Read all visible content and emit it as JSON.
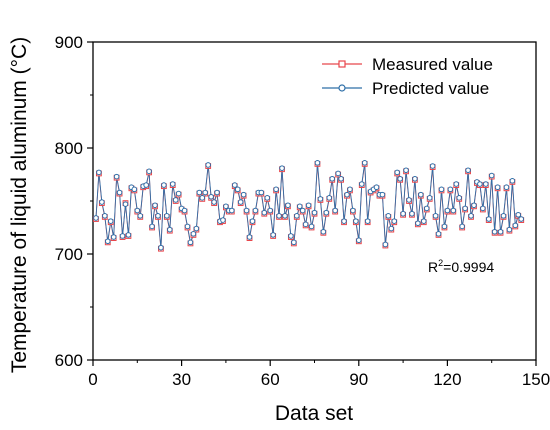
{
  "chart_data": {
    "type": "line",
    "title": "",
    "xlabel": "Data set",
    "ylabel": "Temperature of liquid aluminum (°C)",
    "xlim": [
      0,
      150
    ],
    "ylim": [
      600,
      900
    ],
    "xticks": [
      "0",
      "30",
      "60",
      "90",
      "120",
      "150"
    ],
    "yticks": [
      "600",
      "700",
      "800",
      "900"
    ],
    "grid": false,
    "legend_position": "top-right",
    "annotation": {
      "prefix": "R",
      "superscript": "2",
      "value": "=0.9994"
    },
    "x": [
      1,
      2,
      3,
      4,
      5,
      6,
      7,
      8,
      9,
      10,
      11,
      12,
      13,
      14,
      15,
      16,
      17,
      18,
      19,
      20,
      21,
      22,
      23,
      24,
      25,
      26,
      27,
      28,
      29,
      30,
      31,
      32,
      33,
      34,
      35,
      36,
      37,
      38,
      39,
      40,
      41,
      42,
      43,
      44,
      45,
      46,
      47,
      48,
      49,
      50,
      51,
      52,
      53,
      54,
      55,
      56,
      57,
      58,
      59,
      60,
      61,
      62,
      63,
      64,
      65,
      66,
      67,
      68,
      69,
      70,
      71,
      72,
      73,
      74,
      75,
      76,
      77,
      78,
      79,
      80,
      81,
      82,
      83,
      84,
      85,
      86,
      87,
      88,
      89,
      90,
      91,
      92,
      93,
      94,
      95,
      96,
      97,
      98,
      99,
      100,
      101,
      102,
      103,
      104,
      105,
      106,
      107,
      108,
      109,
      110,
      111,
      112,
      113,
      114,
      115,
      116,
      117,
      118,
      119,
      120,
      121,
      122,
      123,
      124,
      125,
      126,
      127,
      128,
      129,
      130,
      131,
      132,
      133,
      134,
      135,
      136,
      137,
      138,
      139,
      140,
      141,
      142,
      143,
      144,
      145
    ],
    "series": [
      {
        "name": "Measured value",
        "color": "#e8474c",
        "marker": "square",
        "values": [
          733,
          776,
          748,
          735,
          711,
          730,
          715,
          772,
          757,
          716,
          748,
          717,
          762,
          760,
          740,
          735,
          763,
          764,
          777,
          725,
          745,
          735,
          705,
          764,
          735,
          722,
          765,
          750,
          756,
          742,
          740,
          725,
          710,
          718,
          723,
          757,
          752,
          757,
          783,
          753,
          748,
          757,
          730,
          731,
          744,
          740,
          740,
          764,
          760,
          748,
          755,
          740,
          715,
          730,
          740,
          757,
          757,
          738,
          752,
          740,
          717,
          760,
          735,
          780,
          735,
          745,
          716,
          710,
          735,
          744,
          740,
          727,
          745,
          725,
          738,
          785,
          751,
          720,
          738,
          752,
          770,
          740,
          775,
          770,
          730,
          755,
          760,
          740,
          730,
          712,
          765,
          785,
          730,
          758,
          760,
          762,
          755,
          755,
          708,
          735,
          723,
          730,
          776,
          770,
          737,
          778,
          750,
          737,
          770,
          728,
          755,
          730,
          742,
          752,
          782,
          735,
          718,
          760,
          725,
          740,
          760,
          740,
          765,
          752,
          725,
          742,
          778,
          735,
          745,
          767,
          765,
          742,
          765,
          732,
          773,
          720,
          762,
          720,
          735,
          762,
          722,
          768,
          726,
          736,
          732
        ]
      },
      {
        "name": "Predicted value",
        "color": "#2f6fa8",
        "marker": "circle",
        "values": [
          734,
          777,
          749,
          736,
          712,
          731,
          716,
          773,
          758,
          717,
          747,
          718,
          763,
          761,
          741,
          736,
          764,
          765,
          778,
          726,
          746,
          736,
          706,
          765,
          736,
          723,
          766,
          751,
          757,
          743,
          741,
          726,
          711,
          719,
          724,
          758,
          753,
          758,
          784,
          754,
          749,
          758,
          731,
          732,
          745,
          741,
          741,
          765,
          761,
          749,
          756,
          741,
          716,
          731,
          741,
          758,
          758,
          739,
          753,
          741,
          718,
          761,
          736,
          781,
          736,
          746,
          717,
          711,
          736,
          745,
          741,
          728,
          746,
          726,
          739,
          786,
          752,
          721,
          739,
          753,
          771,
          741,
          776,
          771,
          731,
          756,
          761,
          741,
          731,
          713,
          766,
          786,
          731,
          759,
          761,
          763,
          756,
          756,
          709,
          736,
          724,
          731,
          777,
          771,
          738,
          779,
          751,
          738,
          771,
          729,
          756,
          731,
          743,
          753,
          783,
          736,
          719,
          761,
          726,
          741,
          761,
          741,
          766,
          753,
          726,
          743,
          779,
          736,
          746,
          768,
          766,
          743,
          766,
          733,
          774,
          721,
          763,
          721,
          736,
          763,
          723,
          769,
          727,
          737,
          733
        ]
      }
    ]
  }
}
